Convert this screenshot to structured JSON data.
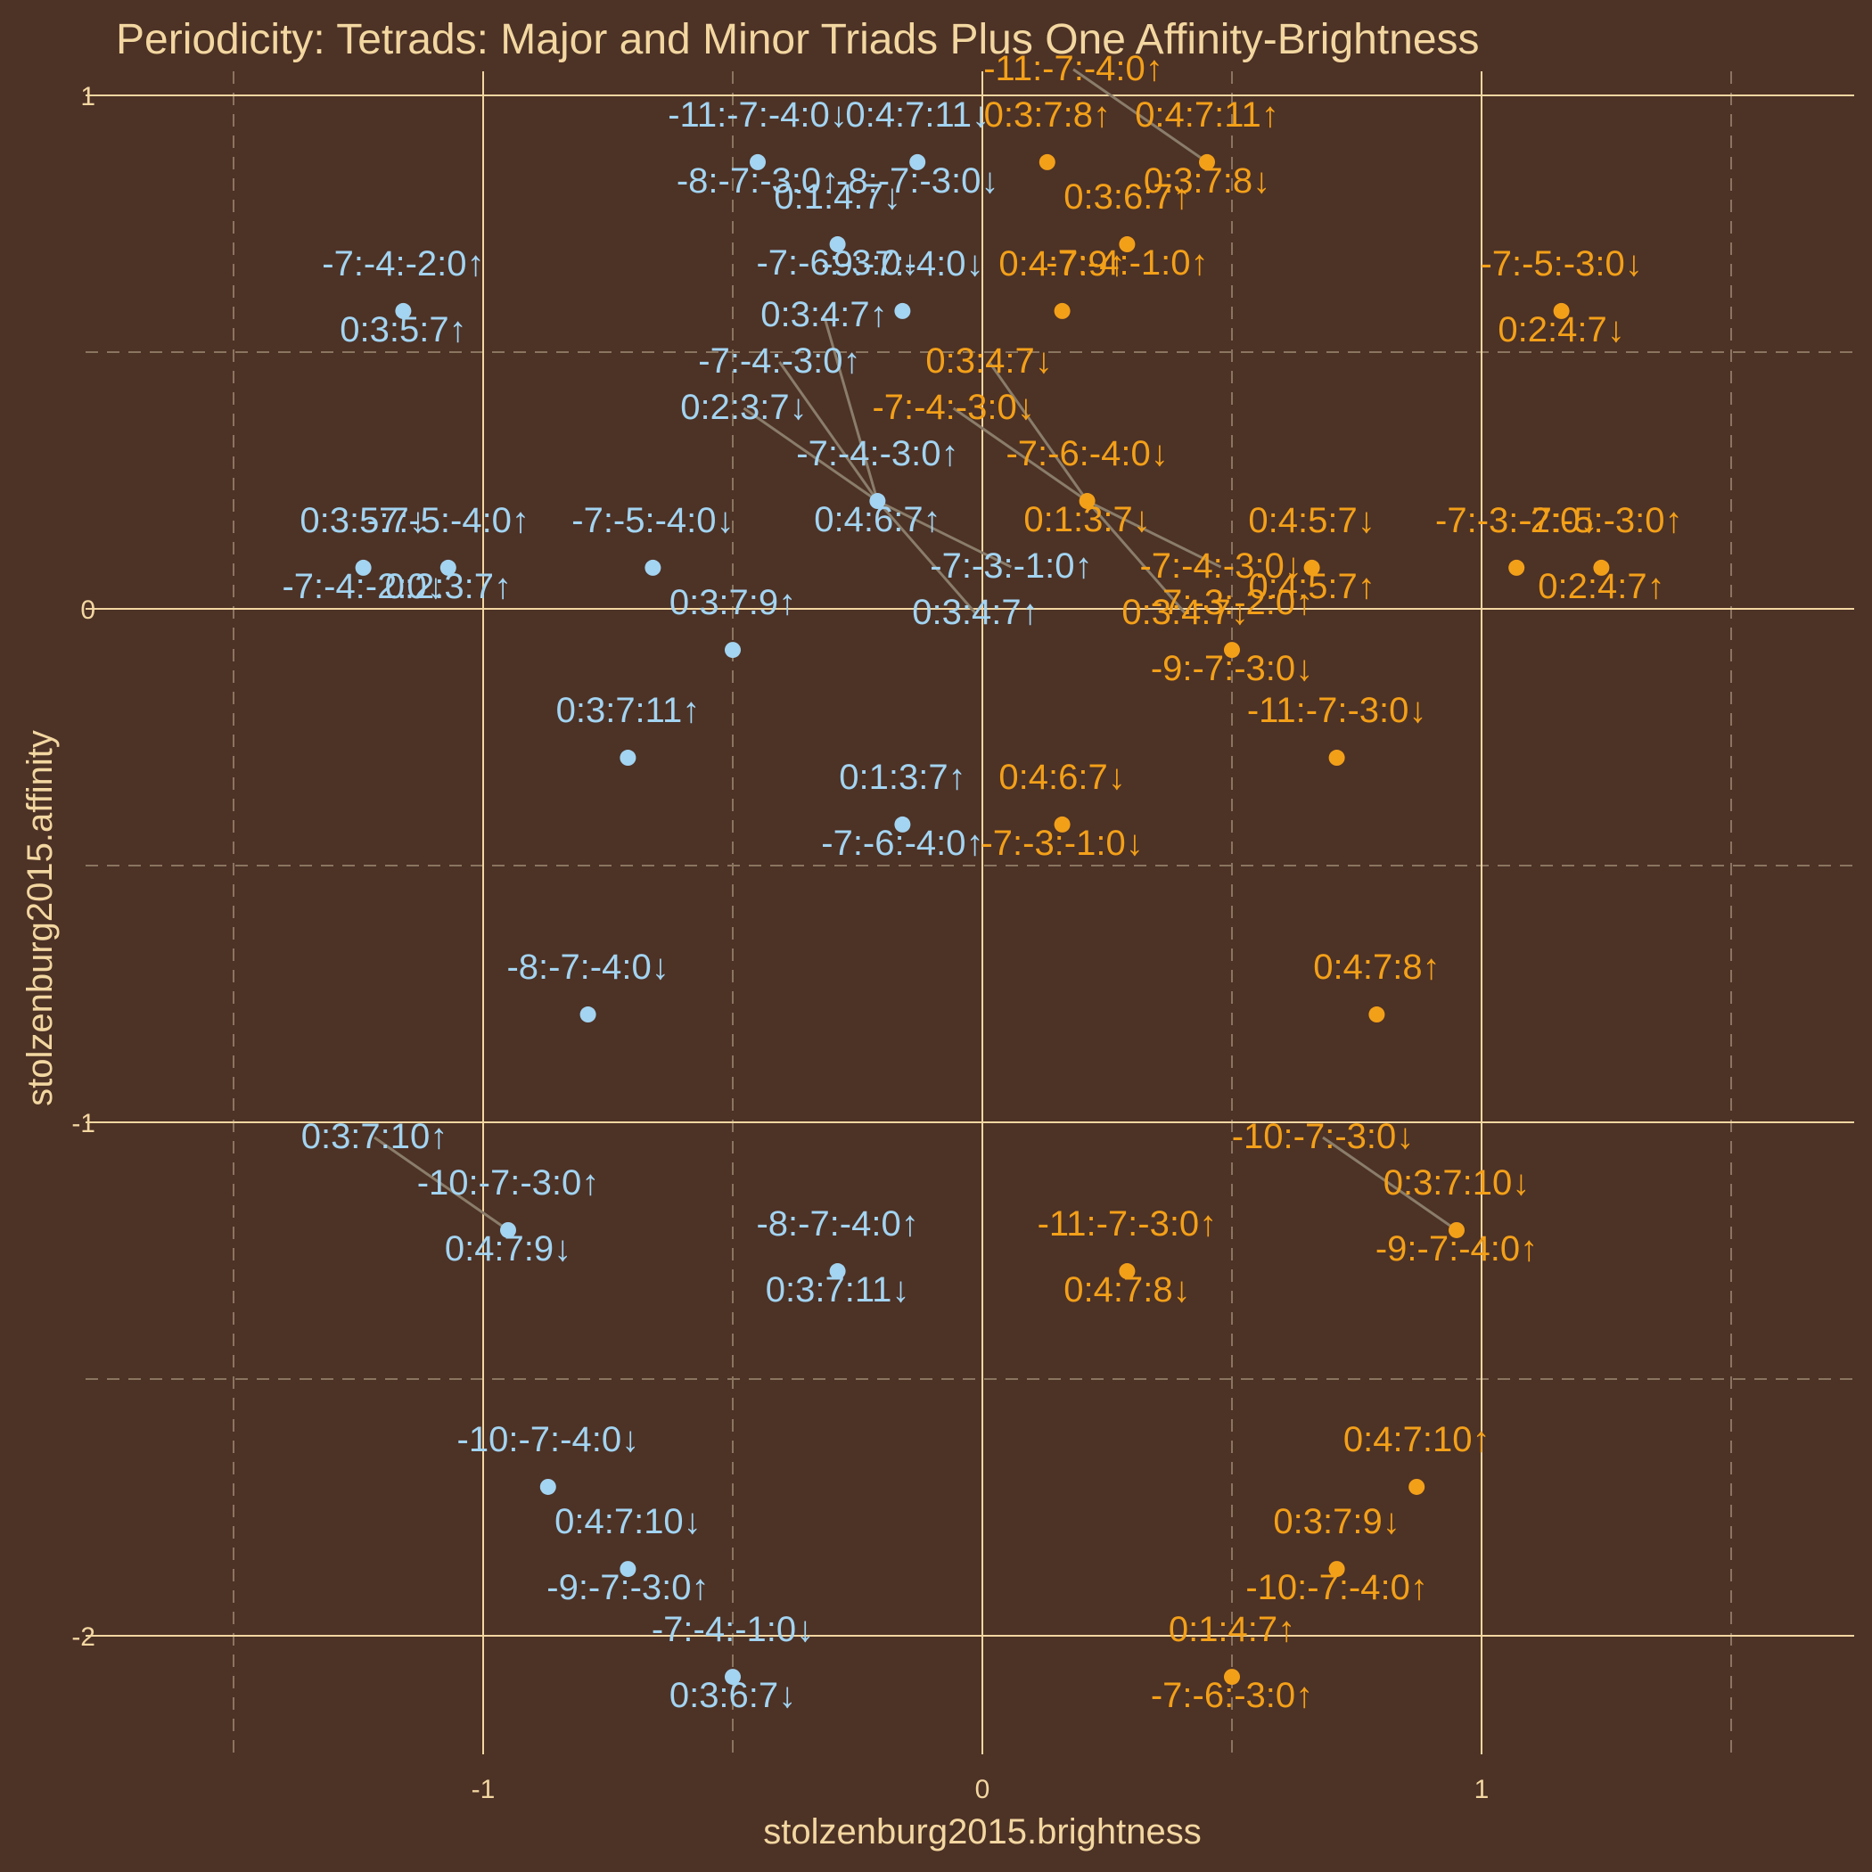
{
  "chart_data": {
    "type": "scatter",
    "title": "Periodicity: Tetrads: Major and Minor Triads Plus One Affinity-Brightness",
    "xlabel": "stolzenburg2015.brightness",
    "ylabel": "stolzenburg2015.affinity",
    "xlim": [
      -1.97,
      1.75
    ],
    "ylim": [
      -2.31,
      1.08
    ],
    "x_ticks": [
      -1,
      0,
      1
    ],
    "y_ticks": [
      1,
      0,
      -1,
      -2
    ],
    "x_tick_labels": [
      "-1",
      "0",
      "1"
    ],
    "y_tick_labels": [
      "1",
      "0",
      "-1",
      "-2"
    ],
    "grid": true,
    "legend": "none",
    "colors": {
      "background": "#4d3226",
      "major_grid": "#f3d7a1",
      "minor_grid": "#8a7560",
      "series_blue": "#a3d4f1",
      "series_orange": "#f3a019",
      "leader": "#8a7d6a",
      "text": "#f3d7a1"
    },
    "series": [
      {
        "color": "blue",
        "points": [
          {
            "x": -0.45,
            "y": 0.87,
            "labels": [
              "-11:-7:-4:0↓",
              "-8:-7:-3:0↑"
            ]
          },
          {
            "x": -0.13,
            "y": 0.87,
            "labels": [
              "0:4:7:11↓",
              "-8:-7:-3:0↓"
            ]
          },
          {
            "x": -0.29,
            "y": 0.71,
            "labels": [
              "0:1:4:7↓",
              "-7:-6:-3:0↓"
            ]
          },
          {
            "x": -1.16,
            "y": 0.58,
            "labels": [
              "-7:-4:-2:0↑",
              "0:3:5:7↑"
            ]
          },
          {
            "x": -0.16,
            "y": 0.58,
            "labels": [
              "-9:-7:-4:0↓"
            ]
          },
          {
            "x": -0.21,
            "y": 0.21,
            "labels": [
              "-7:-4:-3:0↑",
              "0:4:6:7↑",
              "0:2:3:7↓",
              "-7:-3:-1:0↑",
              "-7:-4:-3:0↑",
              "0:3:4:7↑",
              "0:3:4:7↑"
            ]
          },
          {
            "x": -1.24,
            "y": 0.08,
            "labels": [
              "0:3:5:7↓",
              "-7:-4:-2:0↓"
            ]
          },
          {
            "x": -1.07,
            "y": 0.08,
            "labels": [
              "-7:-5:-4:0↑",
              "0:2:3:7↑"
            ]
          },
          {
            "x": -0.66,
            "y": 0.08,
            "labels": [
              "-7:-5:-4:0↓"
            ]
          },
          {
            "x": -0.5,
            "y": -0.08,
            "labels": [
              "0:3:7:9↑"
            ]
          },
          {
            "x": -0.71,
            "y": -0.29,
            "labels": [
              "0:3:7:11↑"
            ]
          },
          {
            "x": -0.16,
            "y": -0.42,
            "labels": [
              "0:1:3:7↑",
              "-7:-6:-4:0↑"
            ]
          },
          {
            "x": -0.79,
            "y": -0.79,
            "labels": [
              "-8:-7:-4:0↓"
            ]
          },
          {
            "x": -0.95,
            "y": -1.21,
            "labels": [
              "-10:-7:-3:0↑",
              "0:4:7:9↓",
              "0:3:7:10↑"
            ]
          },
          {
            "x": -0.29,
            "y": -1.29,
            "labels": [
              "-8:-7:-4:0↑",
              "0:3:7:11↓"
            ]
          },
          {
            "x": -0.87,
            "y": -1.71,
            "labels": [
              "-10:-7:-4:0↓"
            ]
          },
          {
            "x": -0.71,
            "y": -1.87,
            "labels": [
              "0:4:7:10↓",
              "-9:-7:-3:0↑"
            ]
          },
          {
            "x": -0.5,
            "y": -2.08,
            "labels": [
              "-7:-4:-1:0↓",
              "0:3:6:7↓"
            ]
          }
        ]
      },
      {
        "color": "orange",
        "points": [
          {
            "x": 0.13,
            "y": 0.87,
            "labels": [
              "0:3:7:8↑"
            ]
          },
          {
            "x": 0.45,
            "y": 0.87,
            "labels": [
              "0:4:7:11↑",
              "0:3:7:8↓",
              "-11:-7:-4:0↑"
            ]
          },
          {
            "x": 0.29,
            "y": 0.71,
            "labels": [
              "0:3:6:7↑",
              "-7:-4:-1:0↑"
            ]
          },
          {
            "x": 0.16,
            "y": 0.58,
            "labels": [
              "0:4:7:9↑"
            ]
          },
          {
            "x": 1.16,
            "y": 0.58,
            "labels": [
              "-7:-5:-3:0↓",
              "0:2:4:7↓"
            ]
          },
          {
            "x": 0.21,
            "y": 0.21,
            "labels": [
              "-7:-6:-4:0↓",
              "0:1:3:7↓",
              "-7:-4:-3:0↓",
              "-7:-4:-3:0↓",
              "0:3:4:7↓",
              "0:3:4:7↓"
            ]
          },
          {
            "x": 0.66,
            "y": 0.08,
            "labels": [
              "0:4:5:7↓",
              "0:4:5:7↑"
            ]
          },
          {
            "x": 1.07,
            "y": 0.08,
            "labels": [
              "-7:-3:-2:0↓"
            ]
          },
          {
            "x": 1.24,
            "y": 0.08,
            "labels": [
              "-7:-5:-3:0↑",
              "0:2:4:7↑"
            ]
          },
          {
            "x": 0.5,
            "y": -0.08,
            "labels": [
              "-7:-3:-2:0↑",
              "-9:-7:-3:0↓"
            ]
          },
          {
            "x": 0.71,
            "y": -0.29,
            "labels": [
              "-11:-7:-3:0↓"
            ]
          },
          {
            "x": 0.16,
            "y": -0.42,
            "labels": [
              "0:4:6:7↓",
              "-7:-3:-1:0↓"
            ]
          },
          {
            "x": 0.79,
            "y": -0.79,
            "labels": [
              "0:4:7:8↑"
            ]
          },
          {
            "x": 0.95,
            "y": -1.21,
            "labels": [
              "0:3:7:10↓",
              "-9:-7:-4:0↑",
              "-10:-7:-3:0↓"
            ]
          },
          {
            "x": 0.29,
            "y": -1.29,
            "labels": [
              "-11:-7:-3:0↑",
              "0:4:7:8↓"
            ]
          },
          {
            "x": 0.87,
            "y": -1.71,
            "labels": [
              "0:4:7:10↑"
            ]
          },
          {
            "x": 0.71,
            "y": -1.87,
            "labels": [
              "0:3:7:9↓",
              "-10:-7:-4:0↑"
            ]
          },
          {
            "x": 0.5,
            "y": -2.08,
            "labels": [
              "0:1:4:7↑",
              "-7:-6:-3:0↑"
            ]
          }
        ]
      }
    ]
  }
}
